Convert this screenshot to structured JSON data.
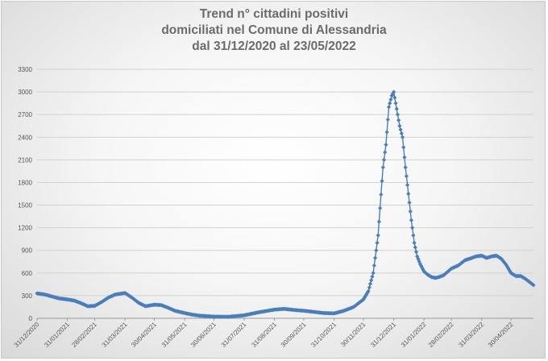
{
  "chart_data": {
    "type": "line",
    "title_lines": [
      "Trend n° cittadini positivi",
      "domiciliati nel Comune di Alessandria",
      "dal 31/12/2020 al 23/05/2022"
    ],
    "xlabel": "",
    "ylabel": "",
    "ylim": [
      0,
      3300
    ],
    "yticks": [
      0,
      300,
      600,
      900,
      1200,
      1500,
      1800,
      2100,
      2400,
      2700,
      3000,
      3300
    ],
    "xlim": [
      "2020-12-31",
      "2022-05-23"
    ],
    "xticks": [
      "31/12/2020",
      "31/01/2021",
      "28/02/2021",
      "31/03/2021",
      "30/04/2021",
      "31/05/2021",
      "30/06/2021",
      "31/07/2021",
      "31/08/2021",
      "30/09/2021",
      "31/10/2021",
      "30/11/2021",
      "31/12/2021",
      "31/01/2022",
      "28/02/2022",
      "31/03/2022",
      "30/04/2022"
    ],
    "grid": true,
    "marker": "diamond",
    "color": "#4a7ebb",
    "series": [
      {
        "x": [
          "2020-12-31",
          "2021-01-08",
          "2021-01-15",
          "2021-01-22",
          "2021-01-31",
          "2021-02-07",
          "2021-02-14",
          "2021-02-21",
          "2021-02-28",
          "2021-03-07",
          "2021-03-14",
          "2021-03-21",
          "2021-03-31",
          "2021-04-07",
          "2021-04-14",
          "2021-04-21",
          "2021-04-30",
          "2021-05-07",
          "2021-05-14",
          "2021-05-21",
          "2021-05-31",
          "2021-06-07",
          "2021-06-15",
          "2021-06-30",
          "2021-07-15",
          "2021-07-31",
          "2021-08-15",
          "2021-08-31",
          "2021-09-10",
          "2021-09-20",
          "2021-09-30",
          "2021-10-10",
          "2021-10-20",
          "2021-10-31",
          "2021-11-10",
          "2021-11-20",
          "2021-11-30",
          "2021-12-05",
          "2021-12-10",
          "2021-12-15",
          "2021-12-20",
          "2021-12-23",
          "2021-12-26",
          "2021-12-29",
          "2021-12-31",
          "2022-01-02",
          "2022-01-04",
          "2022-01-06",
          "2022-01-09",
          "2022-01-12",
          "2022-01-15",
          "2022-01-18",
          "2022-01-21",
          "2022-01-24",
          "2022-01-27",
          "2022-01-31",
          "2022-02-04",
          "2022-02-08",
          "2022-02-12",
          "2022-02-16",
          "2022-02-20",
          "2022-02-28",
          "2022-03-07",
          "2022-03-14",
          "2022-03-21",
          "2022-03-25",
          "2022-03-31",
          "2022-04-05",
          "2022-04-10",
          "2022-04-15",
          "2022-04-20",
          "2022-04-25",
          "2022-04-30",
          "2022-05-05",
          "2022-05-10",
          "2022-05-15",
          "2022-05-19",
          "2022-05-23"
        ],
        "y": [
          330,
          315,
          290,
          265,
          250,
          235,
          200,
          160,
          165,
          215,
          275,
          315,
          335,
          275,
          205,
          160,
          180,
          175,
          140,
          100,
          70,
          50,
          35,
          22,
          20,
          40,
          80,
          115,
          125,
          110,
          100,
          85,
          70,
          65,
          100,
          150,
          250,
          360,
          600,
          1100,
          2000,
          2300,
          2800,
          2950,
          3000,
          2850,
          2700,
          2550,
          2400,
          2000,
          1650,
          1300,
          1000,
          820,
          720,
          620,
          575,
          545,
          535,
          550,
          570,
          660,
          700,
          770,
          800,
          820,
          830,
          800,
          820,
          830,
          790,
          710,
          600,
          560,
          560,
          520,
          480,
          440
        ]
      }
    ]
  }
}
